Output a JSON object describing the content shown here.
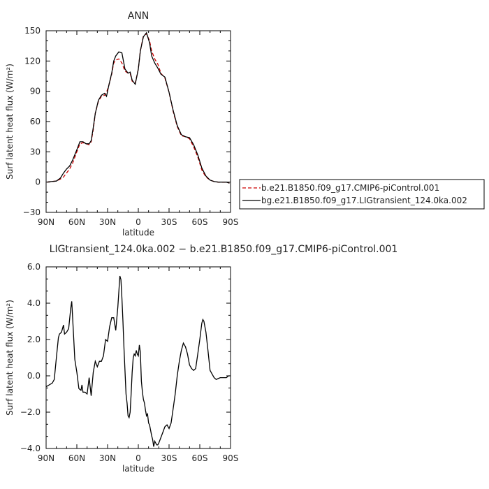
{
  "chart_data": [
    {
      "type": "line",
      "title": "ANN",
      "xlabel": "latitude",
      "ylabel": "Surf latent heat flux (W/m²)",
      "xlim": [
        90,
        -90
      ],
      "ylim": [
        -30,
        150
      ],
      "xticks": [
        90,
        60,
        30,
        0,
        -30,
        -60,
        -90
      ],
      "xtick_labels": [
        "90N",
        "60N",
        "30N",
        "0",
        "30S",
        "60S",
        "90S"
      ],
      "yticks": [
        -30,
        0,
        30,
        60,
        90,
        120,
        150
      ],
      "ytick_labels": [
        "−30",
        "0",
        "30",
        "60",
        "90",
        "120",
        "150"
      ],
      "legend_position": "right",
      "series": [
        {
          "name": "b.e21.B1850.f09_g17.CMIP6-piControl.001",
          "color": "#cc0000",
          "dash": true,
          "x": [
            89,
            85,
            80,
            76,
            73,
            70,
            67,
            64,
            60,
            57,
            54,
            51,
            48,
            46,
            44,
            42,
            39,
            36,
            33,
            31,
            29,
            26,
            24,
            22,
            19,
            16,
            13,
            10,
            8,
            6,
            3,
            0,
            -2,
            -5,
            -8,
            -11,
            -13,
            -16,
            -19,
            -22,
            -26,
            -30,
            -34,
            -38,
            -42,
            -46,
            -50,
            -54,
            -58,
            -62,
            -66,
            -70,
            -74,
            -78,
            -82,
            -86,
            -89
          ],
          "y": [
            0,
            0.5,
            1,
            3,
            5,
            9,
            13,
            19,
            30,
            38,
            39,
            38,
            37,
            40,
            52,
            68,
            80,
            85,
            86,
            89,
            95,
            107,
            118,
            121,
            122,
            118,
            110,
            108,
            108,
            100,
            98,
            112,
            130,
            145,
            147,
            140,
            130,
            122,
            117,
            108,
            103,
            89,
            70,
            55,
            46,
            45,
            43,
            35,
            25,
            12,
            5,
            2,
            0.5,
            0,
            0,
            0,
            -1
          ]
        },
        {
          "name": "bg.e21.B1850.f09_g17.LIGtransient_124.0ka.002",
          "color": "#000000",
          "dash": false,
          "x": [
            89,
            85,
            80,
            76,
            73,
            70,
            67,
            64,
            60,
            57,
            54,
            51,
            48,
            46,
            44,
            42,
            39,
            36,
            33,
            31,
            29,
            26,
            24,
            22,
            19,
            16,
            13,
            10,
            8,
            6,
            3,
            0,
            -2,
            -5,
            -8,
            -11,
            -13,
            -16,
            -19,
            -22,
            -26,
            -30,
            -34,
            -38,
            -42,
            -46,
            -50,
            -54,
            -58,
            -62,
            -66,
            -70,
            -74,
            -78,
            -82,
            -86,
            -89
          ],
          "y": [
            0,
            0.5,
            1,
            4,
            9,
            13,
            16,
            22,
            32,
            40,
            40,
            38,
            38,
            41,
            54,
            68,
            81,
            86,
            88,
            85,
            95,
            108,
            120,
            125,
            129,
            128,
            112,
            108,
            109,
            101,
            97,
            112,
            130,
            144,
            148,
            138,
            125,
            118,
            113,
            107,
            104,
            89,
            71,
            56,
            47,
            45,
            44,
            37,
            27,
            14,
            6,
            2,
            0.5,
            0,
            0,
            0,
            -1
          ]
        }
      ]
    },
    {
      "type": "line",
      "title": "LIGtransient_124.0ka.002 − b.e21.B1850.f09_g17.CMIP6-piControl.001",
      "xlabel": "latitude",
      "ylabel": "Surf latent heat flux (W/m²)",
      "xlim": [
        90,
        -90
      ],
      "ylim": [
        -4,
        6
      ],
      "xticks": [
        90,
        60,
        30,
        0,
        -30,
        -60,
        -90
      ],
      "xtick_labels": [
        "90N",
        "60N",
        "30N",
        "0",
        "30S",
        "60S",
        "90S"
      ],
      "yticks": [
        -4,
        -2,
        0,
        2,
        4,
        6
      ],
      "ytick_labels": [
        "−4.0",
        "−2.0",
        "0.0",
        "2.0",
        "4.0",
        "6.0"
      ],
      "series": [
        {
          "color": "#000000",
          "x": [
            90,
            87,
            84,
            82,
            80,
            78,
            77,
            75,
            73,
            72,
            70,
            68,
            66,
            65,
            64,
            62,
            60,
            58,
            56,
            55,
            54,
            52,
            50,
            48,
            46,
            44,
            42,
            40,
            38,
            36,
            34,
            32,
            30,
            28,
            26,
            24,
            22,
            20,
            18,
            17,
            16,
            15,
            14,
            13,
            12,
            11,
            10,
            9,
            8,
            7,
            6,
            5,
            4,
            3,
            2,
            1,
            0,
            -1,
            -2,
            -3,
            -4,
            -5,
            -6,
            -7,
            -8,
            -9,
            -10,
            -11,
            -12,
            -13,
            -14,
            -15,
            -16,
            -17,
            -18,
            -19,
            -20,
            -22,
            -24,
            -26,
            -28,
            -30,
            -32,
            -34,
            -36,
            -38,
            -40,
            -42,
            -44,
            -46,
            -48,
            -50,
            -52,
            -54,
            -56,
            -58,
            -60,
            -62,
            -63,
            -64,
            -66,
            -68,
            -70,
            -72,
            -74,
            -76,
            -78,
            -80,
            -82,
            -84,
            -86,
            -88,
            -90
          ],
          "y": [
            -0.6,
            -0.5,
            -0.4,
            -0.2,
            1.0,
            2.1,
            2.3,
            2.4,
            2.8,
            2.3,
            2.4,
            2.6,
            3.7,
            4.1,
            3.1,
            0.9,
            0.2,
            -0.7,
            -0.8,
            -0.5,
            -0.9,
            -0.9,
            -1.0,
            -0.1,
            -1.1,
            0.2,
            0.8,
            0.5,
            0.8,
            0.8,
            1.1,
            2.0,
            1.9,
            2.7,
            3.2,
            3.2,
            2.5,
            3.8,
            5.5,
            5.3,
            4.3,
            3.0,
            1.5,
            0.3,
            -1.0,
            -1.5,
            -2.2,
            -2.3,
            -2.0,
            -1.0,
            0.2,
            1.0,
            1.2,
            1.1,
            1.4,
            1.2,
            1.1,
            1.7,
            1.3,
            -0.3,
            -0.9,
            -1.3,
            -1.5,
            -1.9,
            -2.2,
            -2.1,
            -2.6,
            -2.7,
            -3.0,
            -3.3,
            -3.5,
            -3.9,
            -3.6,
            -3.7,
            -3.8,
            -3.8,
            -3.7,
            -3.4,
            -3.1,
            -2.8,
            -2.7,
            -2.9,
            -2.6,
            -1.8,
            -1.0,
            0.0,
            0.8,
            1.4,
            1.8,
            1.6,
            1.2,
            0.6,
            0.4,
            0.3,
            0.4,
            1.2,
            2.0,
            2.9,
            3.1,
            3.0,
            2.4,
            1.4,
            0.3,
            0.1,
            -0.1,
            -0.2,
            -0.15,
            -0.1,
            -0.1,
            -0.1,
            -0.1,
            0.0,
            0.0
          ]
        }
      ]
    }
  ]
}
